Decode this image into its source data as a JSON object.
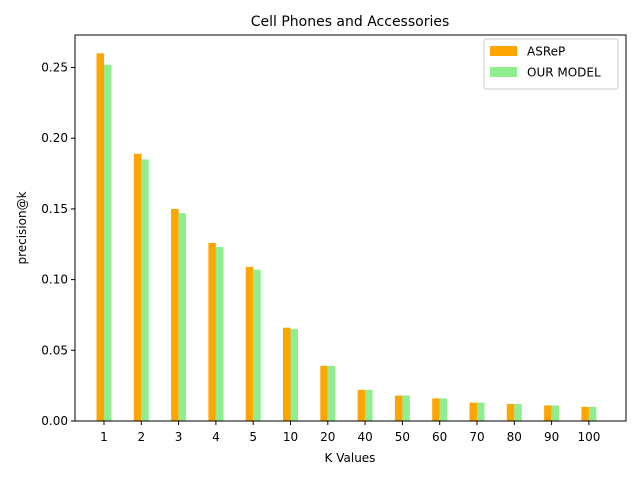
{
  "chart_data": {
    "type": "bar",
    "title": "Cell Phones and Accessories",
    "xlabel": "K Values",
    "ylabel": "precision@k",
    "categories": [
      "1",
      "2",
      "3",
      "4",
      "5",
      "10",
      "20",
      "40",
      "50",
      "60",
      "70",
      "80",
      "90",
      "100"
    ],
    "series": [
      {
        "name": "ASReP",
        "color": "#ffa500",
        "values": [
          0.26,
          0.189,
          0.15,
          0.126,
          0.109,
          0.066,
          0.039,
          0.022,
          0.018,
          0.016,
          0.013,
          0.012,
          0.011,
          0.01
        ]
      },
      {
        "name": "OUR MODEL",
        "color": "#90ee90",
        "values": [
          0.252,
          0.185,
          0.147,
          0.123,
          0.107,
          0.065,
          0.039,
          0.022,
          0.018,
          0.016,
          0.013,
          0.012,
          0.011,
          0.01
        ]
      }
    ],
    "ylim": [
      0,
      0.273
    ],
    "yticks": [
      "0.00",
      "0.05",
      "0.10",
      "0.15",
      "0.20",
      "0.25"
    ],
    "legend_position": "top-right",
    "grid": false
  }
}
